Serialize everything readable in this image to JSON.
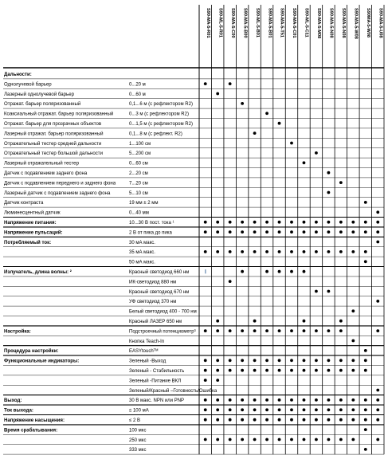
{
  "columns": [
    "S90-MA-5-R01",
    "S90-ML-5-R01",
    "S90-MA-5-C00",
    "S90-MA-5-B00",
    "S90-ML-5-B01",
    "S90-MA-5-B01",
    "S90-MA-5-T51",
    "S90-MA-5-C01",
    "S90-ML-5-C11",
    "S90-MA-5-M08",
    "S90-MA-5-N08",
    "S90-MA-5-N08",
    "S90-MA-5-W08",
    "S90MA-5-W08",
    "S90-MA-5-U08"
  ],
  "rows": [
    {
      "label": "Дальности:",
      "value": "",
      "bold": true,
      "sep": "thick",
      "dots": []
    },
    {
      "label": "Однолучевой барьер",
      "value": "0...20 м",
      "dots": [
        0,
        2
      ]
    },
    {
      "label": "Лазерный однолучевой барьер",
      "value": "0...60 м",
      "dots": [
        1
      ]
    },
    {
      "label": "Отражат. барьер поляризованный",
      "value": "0,1...6 м (с рефлектором R2)",
      "dots": [
        3
      ]
    },
    {
      "label": "Коаксиальный отражат. барьер поляризованный",
      "value": "0...3 м (с рефлектором R2)",
      "dots": [
        5
      ]
    },
    {
      "label": "Отражат. барьер для прозрачных объектов",
      "value": "0...1,5 м (с рефлектором R2)",
      "dots": [
        6
      ]
    },
    {
      "label": "Лазерный отражат. барьер поляризованный",
      "value": "0,1...8 м (с рефлект. R2)",
      "dots": [
        4
      ]
    },
    {
      "label": "Отражательный тестер средней дальности",
      "value": "1...100 см",
      "dots": [
        7
      ]
    },
    {
      "label": "Отражательный тестер большой дальности",
      "value": "5...200 см",
      "dots": [
        9
      ]
    },
    {
      "label": "Лазерный отражательный тестер",
      "value": "0...60 см",
      "dots": [
        8
      ]
    },
    {
      "label": "Датчик с подавлением заднего фона",
      "value": "2...20 см",
      "dots": [
        10
      ]
    },
    {
      "label": "Датчик с подавлением переднего и заднего фона",
      "value": "7...20 см",
      "dots": [
        11
      ]
    },
    {
      "label": "Лазерный датчик с подавлением заднего фона",
      "value": "5...10 см",
      "dots": [
        10
      ]
    },
    {
      "label": "Датчик контраста",
      "value": "19 мм ± 2 мм",
      "dots": [
        13
      ]
    },
    {
      "label": "Люминесцентный датчик",
      "value": "0...40 мм",
      "dots": [
        14
      ]
    },
    {
      "label": "Напряжение питания:",
      "value": "10...30 В пост. тока ¹",
      "bold": true,
      "sep": "thick",
      "dots": "all"
    },
    {
      "label": "Напряжение пульсаций:",
      "value": "2 В от пика до пика",
      "bold": true,
      "sep": "thick",
      "dots": "all"
    },
    {
      "label": "Потребляемый ток:",
      "value": "30 мА макс.",
      "bold": true,
      "sep": "thick",
      "dots": [
        14
      ]
    },
    {
      "label": "",
      "value": "35 мА макс.",
      "dots": [
        0,
        1,
        2,
        3,
        4,
        5,
        6,
        7,
        8,
        9,
        10,
        11,
        12,
        13
      ]
    },
    {
      "label": "",
      "value": "50 мА макс.",
      "dots": [
        13
      ]
    },
    {
      "label": "Излучатель, длина волны: ²",
      "value": "Красный светодиод 660 нм",
      "bold": true,
      "sep": "thick",
      "dots": [
        0,
        3,
        5,
        6,
        7,
        8
      ],
      "bars": [
        0
      ]
    },
    {
      "label": "",
      "value": "ИК-светодиод 880 нм",
      "dots": [
        2
      ]
    },
    {
      "label": "",
      "value": "Красный светодиод 670 нм",
      "dots": [
        9,
        10
      ]
    },
    {
      "label": "",
      "value": "УФ светодиод 370 нм",
      "dots": [
        14
      ]
    },
    {
      "label": "",
      "value": "Белый светодиод 400 - 700 нм",
      "dots": [
        12
      ]
    },
    {
      "label": "",
      "value": "Красный ЛАЗЕР 650 нм",
      "dots": [
        1,
        4,
        8,
        11
      ]
    },
    {
      "label": "Настройка:",
      "value": "Подстроечный потенциометр³",
      "bold": true,
      "sep": "thick",
      "dots": [
        0,
        1,
        2,
        3,
        4,
        5,
        6,
        7,
        8,
        9,
        10,
        11,
        14
      ]
    },
    {
      "label": "",
      "value": "Кнопка Teach-In",
      "dots": [
        12
      ]
    },
    {
      "label": "Процедура настройки:",
      "value": "EASYtouchᵀᴹ",
      "bold": true,
      "sep": "thick",
      "dots": [
        13
      ]
    },
    {
      "label": "Функциональные индикаторы:",
      "value": "Зеленый -Выход",
      "bold": true,
      "sep": "thick",
      "dots": [
        0,
        1,
        2,
        3,
        4,
        5,
        6,
        7,
        8,
        9,
        10,
        11,
        12,
        13
      ]
    },
    {
      "label": "",
      "value": "Зеленый - Стабильность",
      "dots": [
        0,
        1,
        2,
        3,
        4,
        5,
        6,
        7,
        8,
        9,
        10,
        11,
        12,
        13
      ]
    },
    {
      "label": "",
      "value": "Зеленый -Питание ВКЛ",
      "dots": [
        0,
        1
      ]
    },
    {
      "label": "",
      "value": "Зеленый/Красный –Готовность/Ошибка",
      "dots": [
        14
      ]
    },
    {
      "label": "Выход:",
      "value": "30 В макс. NPN или PNP",
      "bold": true,
      "sep": "thick",
      "dots": "all"
    },
    {
      "label": "Ток выхода:",
      "value": "≤ 100 мА",
      "bold": true,
      "sep": "thick",
      "dots": "all"
    },
    {
      "label": "Напряжение насыщения:",
      "value": "≤ 2 В",
      "bold": true,
      "sep": "thick",
      "dots": "all"
    },
    {
      "label": "Время срабатывания:",
      "value": "100 мкс",
      "bold": true,
      "sep": "thick",
      "dots": [
        13
      ]
    },
    {
      "label": "",
      "value": "250 мкс",
      "dots": [
        0,
        1,
        2,
        3,
        4,
        5,
        6,
        7,
        8,
        9,
        10,
        11,
        12,
        14
      ]
    },
    {
      "label": "",
      "value": "333 мкс",
      "dots": [
        13
      ]
    }
  ]
}
